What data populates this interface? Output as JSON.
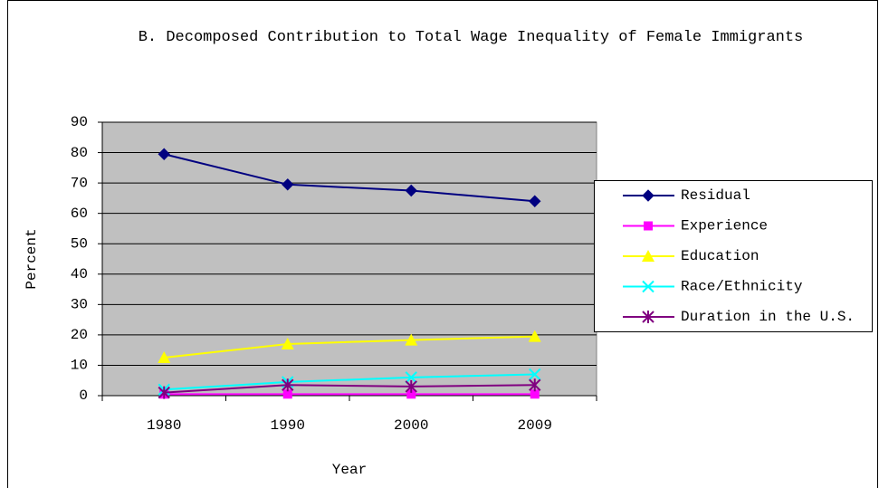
{
  "chart_data": {
    "type": "line",
    "title": "B. Decomposed Contribution to Total Wage Inequality of Female Immigrants",
    "xlabel": "Year",
    "ylabel": "Percent",
    "categories": [
      "1980",
      "1990",
      "2000",
      "2009"
    ],
    "series": [
      {
        "name": "Residual",
        "color": "#000080",
        "marker": "diamond",
        "values": [
          79.5,
          69.5,
          67.5,
          64
        ]
      },
      {
        "name": "Experience",
        "color": "#ff00ff",
        "marker": "square",
        "values": [
          0.5,
          0.5,
          0.5,
          0.5
        ]
      },
      {
        "name": "Education",
        "color": "#ffff00",
        "marker": "triangle",
        "values": [
          12.5,
          17,
          18.3,
          19.5
        ]
      },
      {
        "name": "Race/Ethnicity",
        "color": "#00ffff",
        "marker": "x",
        "values": [
          2,
          4.5,
          6,
          7
        ]
      },
      {
        "name": "Duration in the U.S.",
        "color": "#800080",
        "marker": "star",
        "values": [
          1,
          3.5,
          3,
          3.5
        ]
      }
    ],
    "ylim": [
      0,
      90
    ],
    "yticks": [
      0,
      10,
      20,
      30,
      40,
      50,
      60,
      70,
      80,
      90
    ],
    "grid": true,
    "legend": "right",
    "plot_background": "#c0c0c0"
  }
}
